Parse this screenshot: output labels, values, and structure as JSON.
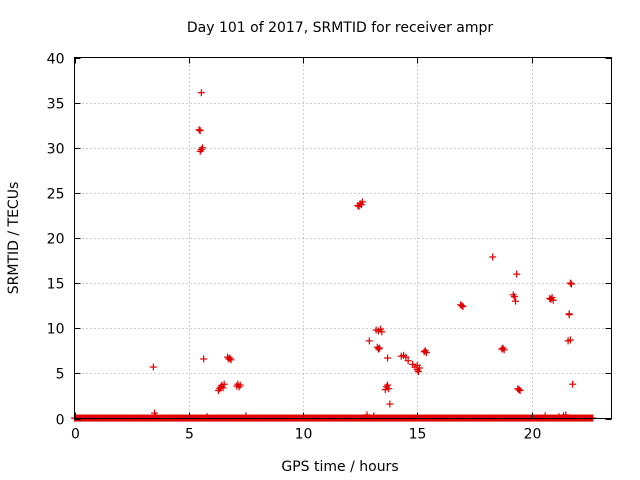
{
  "chart_data": {
    "type": "scatter",
    "title": "Day 101 of 2017, SRMTID for receiver ampr",
    "xlabel": "GPS time / hours",
    "ylabel": "SRMTID / TECUs",
    "xlim": [
      0,
      23.5
    ],
    "ylim": [
      0,
      40
    ],
    "xticks": [
      0,
      5,
      10,
      15,
      20
    ],
    "yticks": [
      0,
      5,
      10,
      15,
      20,
      25,
      30,
      35,
      40
    ],
    "grid": true,
    "marker": "+",
    "marker_color": "#e00000",
    "baseline": {
      "x_start": 0.0,
      "x_end": 22.7,
      "step": 0.04,
      "y": 0.05
    },
    "points": [
      [
        3.45,
        5.7
      ],
      [
        3.5,
        0.6
      ],
      [
        3.55,
        0.3
      ],
      [
        5.45,
        32.0
      ],
      [
        5.5,
        31.9
      ],
      [
        5.55,
        36.1
      ],
      [
        5.5,
        29.6
      ],
      [
        5.55,
        29.8
      ],
      [
        5.6,
        30.0
      ],
      [
        5.65,
        6.6
      ],
      [
        6.3,
        3.1
      ],
      [
        6.35,
        3.3
      ],
      [
        6.4,
        3.5
      ],
      [
        6.45,
        3.7
      ],
      [
        6.5,
        3.4
      ],
      [
        6.55,
        3.8
      ],
      [
        6.7,
        6.8
      ],
      [
        6.75,
        6.6
      ],
      [
        6.8,
        6.7
      ],
      [
        6.85,
        6.5
      ],
      [
        7.1,
        3.6
      ],
      [
        7.15,
        3.8
      ],
      [
        7.2,
        3.5
      ],
      [
        7.25,
        3.7
      ],
      [
        12.4,
        23.6
      ],
      [
        12.45,
        23.5
      ],
      [
        12.5,
        23.8
      ],
      [
        12.55,
        23.7
      ],
      [
        12.6,
        24.0
      ],
      [
        12.9,
        8.6
      ],
      [
        13.2,
        9.8
      ],
      [
        13.3,
        9.7
      ],
      [
        13.4,
        9.9
      ],
      [
        13.45,
        9.6
      ],
      [
        13.25,
        7.9
      ],
      [
        13.3,
        7.7
      ],
      [
        13.35,
        7.8
      ],
      [
        13.6,
        3.2
      ],
      [
        13.65,
        3.5
      ],
      [
        13.7,
        3.7
      ],
      [
        13.75,
        3.3
      ],
      [
        13.7,
        6.7
      ],
      [
        13.8,
        1.6
      ],
      [
        14.3,
        6.9
      ],
      [
        14.4,
        7.0
      ],
      [
        14.5,
        6.8
      ],
      [
        14.6,
        6.4
      ],
      [
        14.8,
        6.0
      ],
      [
        14.9,
        5.7
      ],
      [
        15.0,
        5.4
      ],
      [
        15.05,
        5.2
      ],
      [
        15.1,
        5.6
      ],
      [
        15.0,
        5.9
      ],
      [
        15.3,
        7.4
      ],
      [
        15.35,
        7.5
      ],
      [
        15.4,
        7.3
      ],
      [
        16.9,
        12.6
      ],
      [
        16.95,
        12.5
      ],
      [
        17.0,
        12.4
      ],
      [
        18.3,
        17.9
      ],
      [
        18.7,
        7.7
      ],
      [
        18.75,
        7.8
      ],
      [
        18.8,
        7.6
      ],
      [
        19.2,
        13.7
      ],
      [
        19.25,
        13.5
      ],
      [
        19.3,
        13.0
      ],
      [
        19.35,
        16.0
      ],
      [
        19.4,
        3.3
      ],
      [
        19.45,
        3.2
      ],
      [
        19.5,
        3.1
      ],
      [
        20.8,
        13.3
      ],
      [
        20.85,
        13.2
      ],
      [
        20.9,
        13.4
      ],
      [
        20.95,
        13.1
      ],
      [
        21.6,
        8.6
      ],
      [
        21.65,
        11.5
      ],
      [
        21.7,
        8.7
      ],
      [
        21.7,
        15.0
      ],
      [
        21.75,
        14.9
      ],
      [
        21.8,
        3.8
      ],
      [
        21.65,
        11.6
      ],
      [
        21.4,
        0.3
      ],
      [
        21.5,
        0.4
      ],
      [
        21.2,
        0.2
      ],
      [
        20.6,
        0.3
      ],
      [
        13.1,
        0.3
      ],
      [
        12.8,
        0.4
      ],
      [
        5.8,
        0.2
      ],
      [
        7.5,
        0.3
      ]
    ]
  }
}
